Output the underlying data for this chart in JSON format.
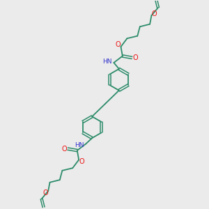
{
  "bg_color": "#ebebeb",
  "bond_color": "#2d8c6a",
  "oxygen_color": "#ee1111",
  "nitrogen_color": "#3333cc",
  "figsize": [
    3.0,
    3.0
  ],
  "dpi": 100,
  "xlim": [
    0,
    10
  ],
  "ylim": [
    0,
    10
  ]
}
